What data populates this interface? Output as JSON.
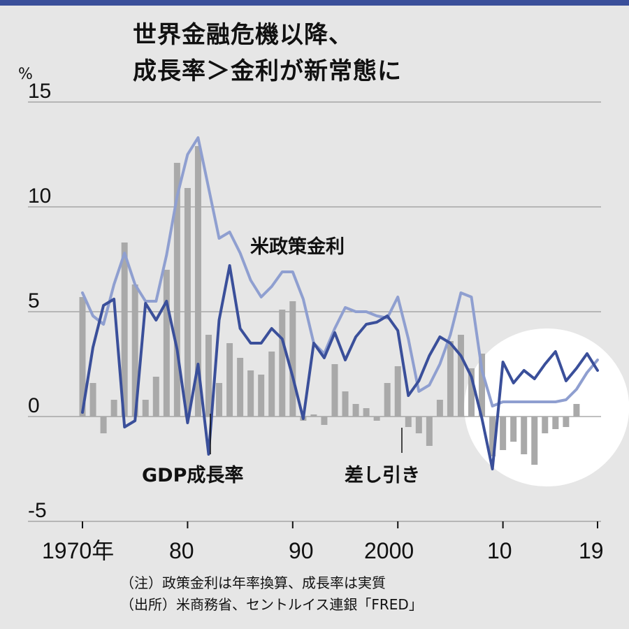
{
  "title_line1": "世界金融危機以降、",
  "title_line2": "成長率＞金利が新常態に",
  "notes": {
    "note": "（注）政策金利は年率換算、成長率は実質",
    "source": "（出所）米商務省、セントルイス連銀「FRED」"
  },
  "colors": {
    "background": "#e6e6e6",
    "top_bar": "#3a4f9a",
    "gdp_line": "#3a4f9a",
    "rate_line": "#8f9fd0",
    "bars": "#a9a9a9",
    "gridline": "#9a9a9a",
    "highlight_circle": "#ffffff"
  },
  "chart_data": {
    "type": "bar+line",
    "ylabel": "%",
    "ylim": [
      -5,
      15
    ],
    "yticks": [
      -5,
      0,
      5,
      10,
      15
    ],
    "ytick_labels": [
      "-5",
      "0",
      "5",
      "10",
      "15"
    ],
    "xlim": [
      1970,
      2019
    ],
    "xticks": [
      1970,
      1980,
      1990,
      2000,
      2010,
      2019
    ],
    "xtick_labels": [
      "1970年",
      "80",
      "90",
      "2000",
      "10",
      "19"
    ],
    "grid": "horizontal",
    "highlight_region": [
      2008,
      2019
    ],
    "x": [
      1970,
      1971,
      1972,
      1973,
      1974,
      1975,
      1976,
      1977,
      1978,
      1979,
      1980,
      1981,
      1982,
      1983,
      1984,
      1985,
      1986,
      1987,
      1988,
      1989,
      1990,
      1991,
      1992,
      1993,
      1994,
      1995,
      1996,
      1997,
      1998,
      1999,
      2000,
      2001,
      2002,
      2003,
      2004,
      2005,
      2006,
      2007,
      2008,
      2009,
      2010,
      2011,
      2012,
      2013,
      2014,
      2015,
      2016,
      2017,
      2018,
      2019
    ],
    "series": [
      {
        "name": "米政策金利",
        "type": "line",
        "values": [
          5.9,
          4.8,
          4.4,
          6.3,
          7.8,
          6.3,
          5.5,
          5.5,
          7.7,
          10.5,
          12.5,
          13.3,
          10.9,
          8.5,
          8.8,
          7.8,
          6.5,
          5.7,
          6.2,
          6.9,
          6.9,
          5.6,
          3.5,
          3.0,
          4.2,
          5.2,
          5.0,
          5.0,
          4.8,
          4.7,
          5.7,
          3.7,
          1.2,
          1.5,
          2.5,
          3.9,
          5.9,
          5.7,
          2.2,
          0.5,
          0.7,
          0.7,
          0.7,
          0.7,
          0.7,
          0.7,
          0.8,
          1.3,
          2.1,
          2.7
        ]
      },
      {
        "name": "GDP成長率",
        "type": "line",
        "values": [
          0.2,
          3.3,
          5.3,
          5.6,
          -0.5,
          -0.2,
          5.4,
          4.6,
          5.5,
          3.2,
          -0.3,
          2.5,
          -1.8,
          4.6,
          7.2,
          4.2,
          3.5,
          3.5,
          4.2,
          3.7,
          1.9,
          -0.1,
          3.5,
          2.8,
          4.0,
          2.7,
          3.8,
          4.4,
          4.5,
          4.8,
          4.1,
          1.0,
          1.7,
          2.9,
          3.8,
          3.5,
          2.9,
          1.9,
          -0.1,
          -2.5,
          2.6,
          1.6,
          2.2,
          1.8,
          2.5,
          3.1,
          1.7,
          2.3,
          3.0,
          2.2
        ]
      },
      {
        "name": "差し引き",
        "type": "bar",
        "values": [
          5.7,
          1.6,
          -0.8,
          0.8,
          8.3,
          6.3,
          0.8,
          1.9,
          7.0,
          12.1,
          10.9,
          12.9,
          3.9,
          1.6,
          3.5,
          2.8,
          2.2,
          2.0,
          3.1,
          5.1,
          5.5,
          -0.2,
          0.1,
          -0.4,
          2.5,
          1.2,
          0.6,
          0.4,
          -0.2,
          1.6,
          2.4,
          -0.5,
          -0.8,
          -1.4,
          0.8,
          3.6,
          3.9,
          2.3,
          3.0,
          -1.9,
          -1.6,
          -1.2,
          -1.8,
          -2.3,
          -0.8,
          -0.6,
          -0.5,
          0.6,
          0.0,
          0.0
        ]
      }
    ],
    "annotations": [
      "米政策金利",
      "GDP成長率",
      "差し引き"
    ]
  }
}
